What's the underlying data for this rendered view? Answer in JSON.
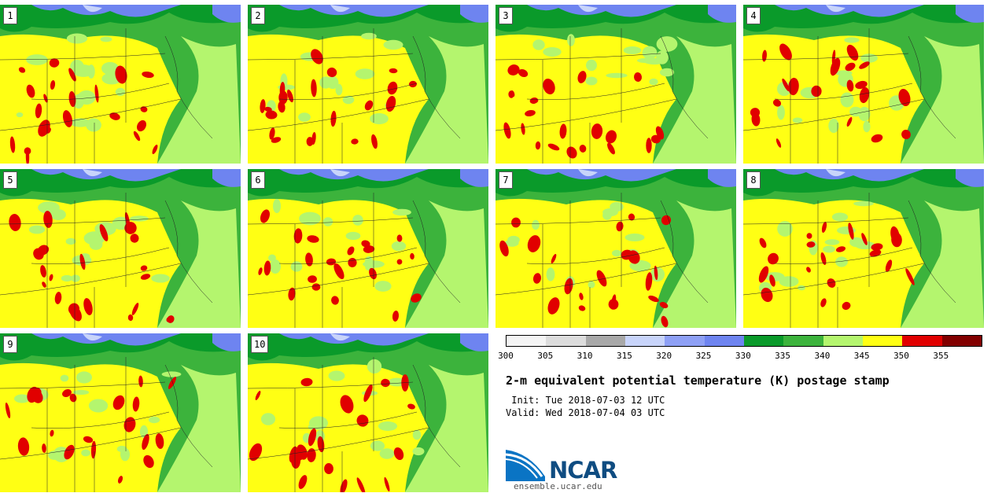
{
  "panels": [
    {
      "label": "1"
    },
    {
      "label": "2"
    },
    {
      "label": "3"
    },
    {
      "label": "4"
    },
    {
      "label": "5"
    },
    {
      "label": "6"
    },
    {
      "label": "7"
    },
    {
      "label": "8"
    },
    {
      "label": "9"
    },
    {
      "label": "10"
    }
  ],
  "colorbar": {
    "ticks": [
      "300",
      "305",
      "310",
      "315",
      "320",
      "325",
      "330",
      "335",
      "340",
      "345",
      "350",
      "355"
    ],
    "colors": [
      "#f4f4f4",
      "#dcdcdc",
      "#a8a8a8",
      "#c8d4fa",
      "#8ea0f5",
      "#6e84f0",
      "#0a9a2a",
      "#3cb33c",
      "#b4f56e",
      "#ffff14",
      "#e10000",
      "#820000"
    ]
  },
  "title": "2-m equivalent potential temperature (K) postage stamp",
  "init_text": " Init: Tue 2018-07-03 12 UTC",
  "valid_text": "Valid: Wed 2018-07-04 03 UTC",
  "logo_text": "NCAR",
  "site_text": "ensemble.ucar.edu"
}
